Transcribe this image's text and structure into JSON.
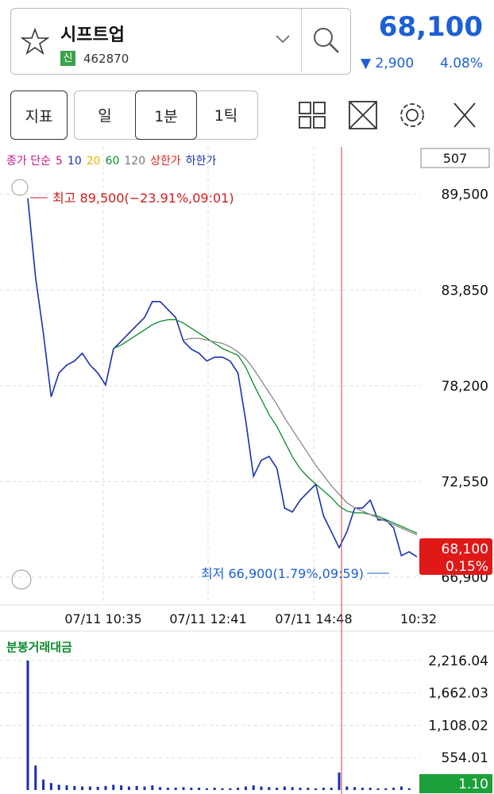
{
  "header": {
    "name": "시프트업",
    "badge": "신",
    "code": "462870",
    "price": "68,100",
    "change": "▼ 2,900",
    "change_rate": "4.08%"
  },
  "toolbar": {
    "indicator": "지표",
    "day": "일",
    "minute": "1분",
    "tick": "1틱"
  },
  "legend": [
    {
      "text": "종가 단순",
      "color": "#c0188c"
    },
    {
      "text": "5",
      "color": "#c0188c"
    },
    {
      "text": "10",
      "color": "#1a2fb0"
    },
    {
      "text": "20",
      "color": "#e8b400"
    },
    {
      "text": "60",
      "color": "#0c8a2e"
    },
    {
      "text": "120",
      "color": "#777777"
    },
    {
      "text": "상한가",
      "color": "#e02020"
    },
    {
      "text": "하한가",
      "color": "#1a2fb0"
    }
  ],
  "count": "507",
  "x_labels": [
    "07/11 10:35",
    "07/11 12:41",
    "07/11 14:48",
    "10:32"
  ],
  "chart_data": [
    {
      "type": "line",
      "ylim": [
        65350,
        92300
      ],
      "yticks": [
        {
          "value": 89500,
          "label": "89,500"
        },
        {
          "value": 83850,
          "label": "83,850"
        },
        {
          "value": 78200,
          "label": "78,200"
        },
        {
          "value": 72550,
          "label": "72,550"
        },
        {
          "value": 66900,
          "label": "66,900"
        }
      ],
      "grid": true,
      "series": [
        {
          "name": "종가",
          "color": "#1a2fb0",
          "values": [
            89270,
            84580,
            81300,
            77550,
            78950,
            79420,
            79660,
            80120,
            79420,
            78950,
            78250,
            80360,
            80830,
            81300,
            81770,
            82230,
            83170,
            83170,
            82700,
            82230,
            80830,
            80360,
            80120,
            79660,
            79890,
            79890,
            79660,
            78950,
            76140,
            72860,
            73800,
            74030,
            73330,
            70980,
            70750,
            71450,
            71920,
            72390,
            70510,
            69580,
            68640,
            69580,
            70980,
            70980,
            71450,
            70280,
            70280,
            69810,
            68170,
            68400,
            68100
          ]
        },
        {
          "name": "20",
          "color": "#0c8a2e",
          "values": [
            null,
            null,
            null,
            null,
            null,
            null,
            null,
            null,
            null,
            null,
            null,
            80400,
            80600,
            80900,
            81200,
            81500,
            81800,
            82000,
            82100,
            82100,
            81900,
            81600,
            81300,
            81000,
            80700,
            80400,
            80200,
            80000,
            79300,
            78300,
            77400,
            76500,
            75800,
            74900,
            74000,
            73300,
            72800,
            72400,
            72000,
            71600,
            71100,
            70800,
            70700,
            70700,
            70600,
            70500,
            70300,
            70100,
            69900,
            69700,
            69500
          ]
        },
        {
          "name": "120",
          "color": "#888888",
          "values": [
            null,
            null,
            null,
            null,
            null,
            null,
            null,
            null,
            null,
            null,
            null,
            null,
            null,
            null,
            null,
            null,
            null,
            null,
            null,
            null,
            80900,
            81000,
            81000,
            80900,
            80800,
            80700,
            80500,
            80200,
            79800,
            79200,
            78500,
            77800,
            77100,
            76300,
            75600,
            74900,
            74200,
            73500,
            72900,
            72300,
            71800,
            71300,
            71000,
            70800,
            70600,
            70400,
            70200,
            70000,
            69800,
            69600,
            69400
          ]
        }
      ],
      "high_label": "최고 89,500(−23.91%,09:01)",
      "low_label": "최저 66,900(1.79%,09:59)",
      "current_label": "68,100",
      "current_change": "0.15%"
    },
    {
      "type": "bar",
      "title": "분봉거래대금",
      "color": "#1a2fb0",
      "ylim": [
        0,
        2650
      ],
      "yticks": [
        {
          "value": 2216.04,
          "label": "2,216.04"
        },
        {
          "value": 1662.03,
          "label": "1,662.03"
        },
        {
          "value": 1108.02,
          "label": "1,108.02"
        },
        {
          "value": 554.01,
          "label": "554.01"
        }
      ],
      "values": [
        2216,
        420,
        180,
        120,
        90,
        80,
        70,
        60,
        60,
        55,
        70,
        90,
        80,
        60,
        70,
        60,
        80,
        50,
        40,
        40,
        50,
        40,
        40,
        30,
        40,
        30,
        30,
        40,
        60,
        80,
        60,
        50,
        40,
        60,
        50,
        40,
        40,
        30,
        40,
        40,
        300,
        60,
        50,
        40,
        40,
        30,
        30,
        40,
        60,
        30,
        1.1
      ],
      "current_label": "1.10"
    }
  ]
}
